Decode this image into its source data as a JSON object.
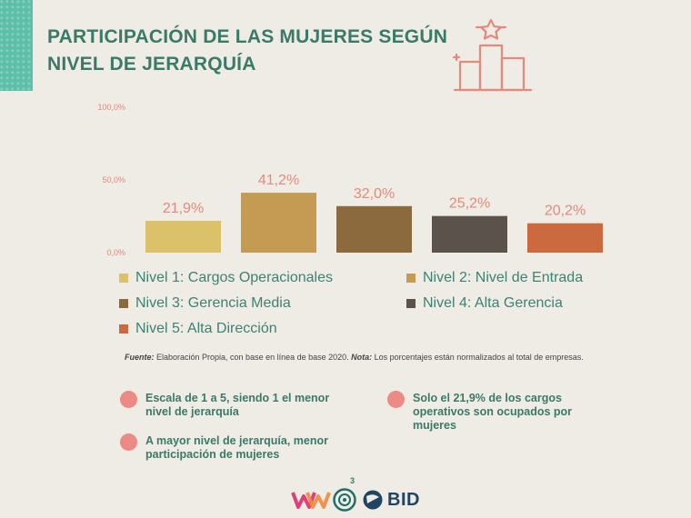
{
  "header": {
    "title_line1": "PARTICIPACIÓN DE LAS MUJERES SEGÚN",
    "title_line2": "NIVEL DE JERARQUÍA",
    "icon": "podium-star-icon"
  },
  "chart_data": {
    "type": "bar",
    "title": "",
    "xlabel": "",
    "ylabel": "",
    "ylim": [
      0,
      100
    ],
    "yticks": [
      "0,0%",
      "50,0%",
      "100,0%"
    ],
    "categories": [
      "Nivel 1: Cargos Operacionales",
      "Nivel 2: Nivel de Entrada",
      "Nivel 3: Gerencia Media",
      "Nivel 4: Alta Gerencia",
      "Nivel 5: Alta Dirección"
    ],
    "values": [
      21.9,
      41.2,
      32.0,
      25.2,
      20.2
    ],
    "value_labels": [
      "21,9%",
      "41,2%",
      "32,0%",
      "25,2%",
      "20,2%"
    ],
    "colors": [
      "#dcc16b",
      "#c59a53",
      "#8b6b3d",
      "#5b524b",
      "#cc6a3f"
    ],
    "grid": false,
    "legend_position": "bottom"
  },
  "note": {
    "source_label": "Fuente:",
    "source_text": " Elaboración Propia, con base en línea de base 2020. ",
    "note_label": "Nota:",
    "note_text": " Los porcentajes están normalizados al total de empresas."
  },
  "bullets": [
    {
      "line1": "Escala de 1 a 5, siendo 1 el menor",
      "line2": "nivel de jerarquía"
    },
    {
      "line1": "A mayor nivel de jerarquía, menor",
      "line2": "participación de mujeres"
    },
    {
      "line1": "Solo el 21,9% de los cargos",
      "line2": "operativos son ocupados por",
      "line3": "mujeres"
    }
  ],
  "colors": {
    "title": "#3a7a68",
    "accent_dot": "#ec8a85",
    "background": "#efebe5"
  },
  "footer": {
    "page_number": "3",
    "logo_text": "BID"
  }
}
